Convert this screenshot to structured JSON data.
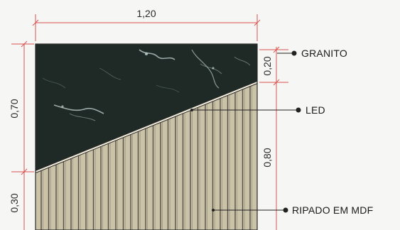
{
  "dimensions": {
    "width_top": "1,20",
    "height_left_upper": "0,70",
    "height_left_lower": "0,30",
    "height_right_upper": "0,20",
    "height_right_lower": "0,80"
  },
  "callouts": {
    "granite": "GRANITO",
    "led": "LED",
    "mdf": "RIPADO EM MDF"
  },
  "colors": {
    "dimension_line": "#d9534f",
    "granite": "#1f2a27",
    "granite_vein": "#b9c9c8",
    "mdf": "#cbc3a8",
    "mdf_slat_line": "#555048",
    "led": "#f4efdc",
    "leader": "#222222"
  }
}
